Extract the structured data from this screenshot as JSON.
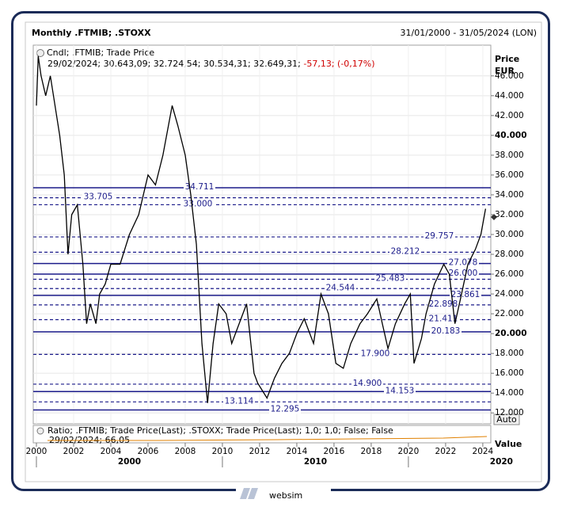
{
  "header": {
    "title": "Monthly .FTMIB; .STOXX",
    "range": "31/01/2000 - 31/05/2024 (LON)"
  },
  "chart_data": {
    "type": "line",
    "legend": "Cndl; .FTMIB; Trade Price",
    "ohlc_label": "29/02/2024; 30.643,09; 32.724,54; 30.534,31; 32.649,31;",
    "change_label": "-57,13; (-0,17%)",
    "y_title": "Price",
    "y_unit": "EUR",
    "color": "#000000",
    "x": [
      2000.0,
      2000.1,
      2000.25,
      2000.5,
      2000.75,
      2001.0,
      2001.25,
      2001.5,
      2001.7,
      2001.9,
      2002.2,
      2002.5,
      2002.7,
      2002.9,
      2003.2,
      2003.4,
      2003.7,
      2004.0,
      2004.5,
      2005.0,
      2005.5,
      2006.0,
      2006.4,
      2006.8,
      2007.3,
      2007.6,
      2008.0,
      2008.3,
      2008.6,
      2008.9,
      2009.2,
      2009.5,
      2009.8,
      2010.2,
      2010.5,
      2010.9,
      2011.3,
      2011.7,
      2011.9,
      2012.4,
      2012.8,
      2013.2,
      2013.6,
      2014.0,
      2014.4,
      2014.9,
      2015.3,
      2015.7,
      2016.1,
      2016.5,
      2016.9,
      2017.4,
      2017.8,
      2018.3,
      2018.6,
      2018.9,
      2019.3,
      2019.8,
      2020.1,
      2020.3,
      2020.7,
      2020.95,
      2021.4,
      2021.9,
      2022.2,
      2022.5,
      2022.8,
      2023.2,
      2023.6,
      2023.9,
      2024.15
    ],
    "values": [
      43,
      48,
      46,
      44,
      46,
      43,
      40,
      36,
      28,
      32,
      33,
      27,
      21,
      23,
      21,
      24,
      25,
      27,
      27,
      30,
      32,
      36,
      35,
      38,
      43,
      41,
      38,
      34,
      29,
      19,
      13,
      19,
      23,
      22,
      19,
      21,
      23,
      16,
      15,
      13.5,
      15.5,
      17,
      18,
      20,
      21.5,
      19,
      24,
      22,
      17,
      16.5,
      19,
      21,
      22,
      23.5,
      21,
      18.5,
      21,
      23,
      24,
      17,
      19.5,
      22,
      25,
      27,
      26,
      21,
      23.5,
      27,
      28.5,
      30,
      32.6
    ],
    "xlim": [
      1999.83,
      2024.43
    ],
    "ylim": [
      10.9,
      49.1
    ],
    "xticks": [
      2000,
      2002,
      2004,
      2006,
      2008,
      2010,
      2012,
      2014,
      2016,
      2018,
      2020,
      2022,
      2024
    ],
    "xticks_major": [
      2000,
      2010,
      2020
    ],
    "yticks": [
      {
        "value": 12,
        "label": "12.000"
      },
      {
        "value": 14,
        "label": "14.000"
      },
      {
        "value": 16,
        "label": "16.000"
      },
      {
        "value": 18,
        "label": "18.000"
      },
      {
        "value": 20,
        "label": "20.000"
      },
      {
        "value": 22,
        "label": "22.000"
      },
      {
        "value": 24,
        "label": "24.000"
      },
      {
        "value": 26,
        "label": "26.000"
      },
      {
        "value": 28,
        "label": "28.000"
      },
      {
        "value": 30,
        "label": "30.000"
      },
      {
        "value": 32,
        "label": "32.000"
      },
      {
        "value": 34,
        "label": "34.000"
      },
      {
        "value": 36,
        "label": "36.000"
      },
      {
        "value": 38,
        "label": "38.000"
      },
      {
        "value": 40,
        "label": "40.000"
      },
      {
        "value": 42,
        "label": "42.000"
      },
      {
        "value": 44,
        "label": "44.000"
      },
      {
        "value": 46,
        "label": "46.000"
      }
    ],
    "bold_ticks": [
      20,
      40
    ],
    "grid": true,
    "levels": [
      {
        "value": 34.711,
        "label": "34.711",
        "style": "solid"
      },
      {
        "value": 33.705,
        "label": "33.705",
        "style": "dashed"
      },
      {
        "value": 33,
        "label": "33.000",
        "style": "dashed"
      },
      {
        "value": 29.757,
        "label": "29.757",
        "style": "dashed"
      },
      {
        "value": 28.212,
        "label": "28.212",
        "style": "dashed"
      },
      {
        "value": 27.078,
        "label": "27.078",
        "style": "solid"
      },
      {
        "value": 26,
        "label": "26.000",
        "style": "solid"
      },
      {
        "value": 25.483,
        "label": "25.483",
        "style": "dashed"
      },
      {
        "value": 24.544,
        "label": "24.544",
        "style": "dashed"
      },
      {
        "value": 23.861,
        "label": "23.861",
        "style": "solid"
      },
      {
        "value": 22.898,
        "label": "22.898",
        "style": "dashed"
      },
      {
        "value": 21.411,
        "label": "21.411",
        "style": "dashed"
      },
      {
        "value": 20.183,
        "label": "20.183",
        "style": "solid"
      },
      {
        "value": 17.9,
        "label": "17.900",
        "style": "dashed"
      },
      {
        "value": 14.9,
        "label": "14.900",
        "style": "dashed"
      },
      {
        "value": 14.153,
        "label": "14.153",
        "style": "solid"
      },
      {
        "value": 13.114,
        "label": "13.114",
        "style": "dashed"
      },
      {
        "value": 12.295,
        "label": "12.295",
        "style": "solid"
      }
    ]
  },
  "ratio_pane": {
    "label": "Ratio; .FTMIB; Trade Price(Last); .STOXX; Trade Price(Last); 1,0; 1,0; False; False",
    "last": "29/02/2024; 66,05",
    "y_title": "Value"
  },
  "auto_button": "Auto",
  "logo": "websim"
}
